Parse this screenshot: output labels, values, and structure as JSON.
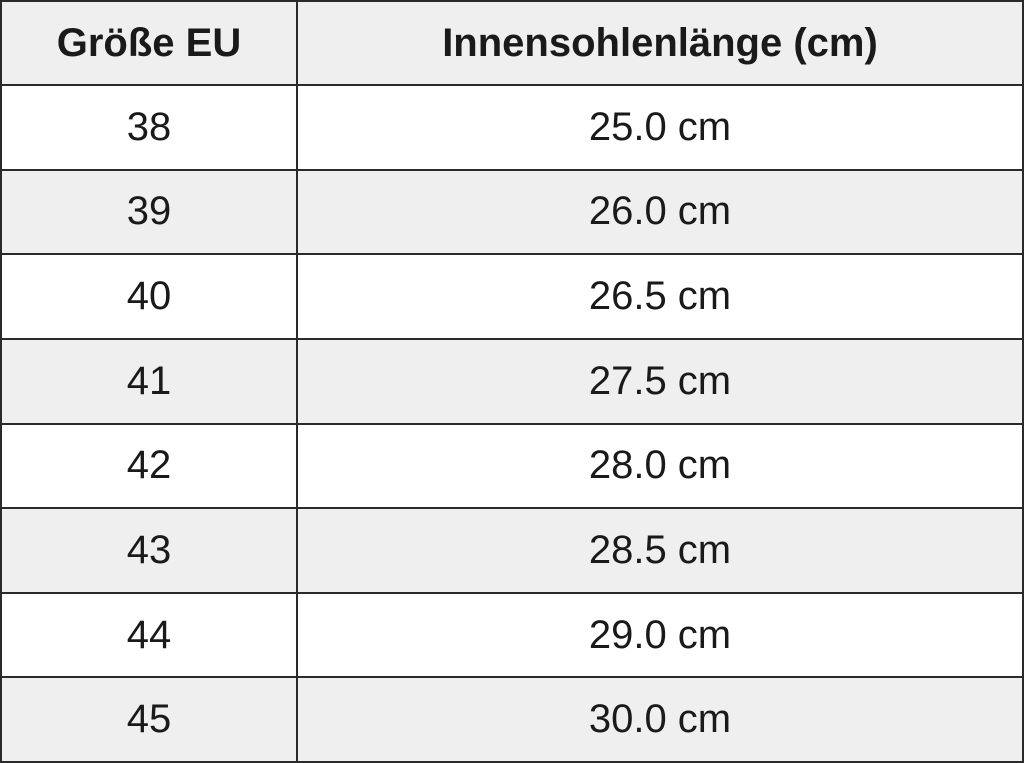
{
  "table": {
    "header": [
      "Größe EU",
      "Innensohlenlänge (cm)"
    ],
    "rows": [
      [
        "38",
        "25.0 cm"
      ],
      [
        "39",
        "26.0 cm"
      ],
      [
        "40",
        "26.5 cm"
      ],
      [
        "41",
        "27.5 cm"
      ],
      [
        "42",
        "28.0 cm"
      ],
      [
        "43",
        "28.5 cm"
      ],
      [
        "44",
        "29.0 cm"
      ],
      [
        "45",
        "30.0 cm"
      ]
    ]
  }
}
